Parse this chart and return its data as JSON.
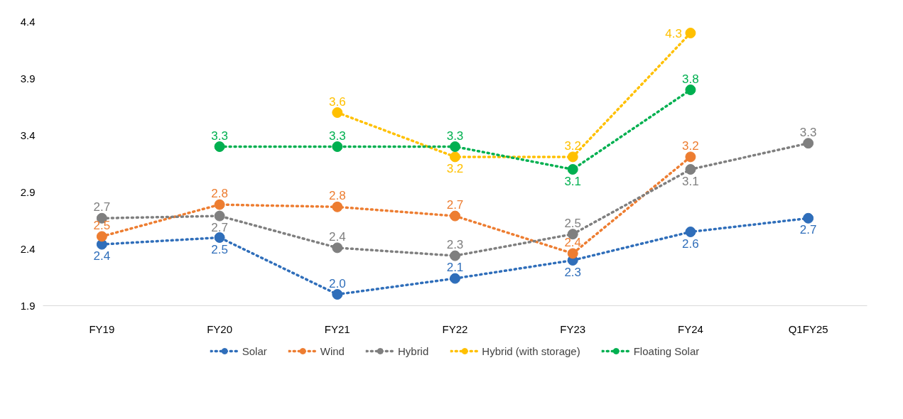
{
  "chart_data": {
    "type": "line",
    "categories": [
      "FY19",
      "FY20",
      "FY21",
      "FY22",
      "FY23",
      "FY24",
      "Q1FY25"
    ],
    "ylim": [
      1.9,
      4.4
    ],
    "yticks": [
      1.9,
      2.4,
      2.9,
      3.4,
      3.9,
      4.4
    ],
    "grid": false,
    "legend": "bottom",
    "marker": "circle",
    "line_style": "dotted",
    "series": [
      {
        "name": "Solar",
        "color": "#2f6eba",
        "values": [
          2.44,
          2.5,
          2.0,
          2.14,
          2.3,
          2.55,
          2.67
        ],
        "value_labels": [
          "2.4",
          "2.5",
          "2.0",
          "2.1",
          "2.3",
          "2.6",
          "2.7"
        ]
      },
      {
        "name": "Wind",
        "color": "#ed7d31",
        "values": [
          2.51,
          2.79,
          2.77,
          2.69,
          2.36,
          3.21,
          null
        ],
        "value_labels": [
          "2.5",
          "2.8",
          "2.8",
          "2.7",
          "2.4",
          "3.2",
          null
        ]
      },
      {
        "name": "Hybrid",
        "color": "#7f7f7f",
        "values": [
          2.67,
          2.69,
          2.41,
          2.34,
          2.53,
          3.1,
          3.33
        ],
        "value_labels": [
          "2.7",
          "2.7",
          "2.4",
          "2.3",
          "2.5",
          "3.1",
          "3.3"
        ]
      },
      {
        "name": "Hybrid (with storage)",
        "color": "#ffc000",
        "values": [
          null,
          null,
          3.6,
          3.21,
          3.21,
          4.3,
          null
        ],
        "value_labels": [
          null,
          null,
          "3.6",
          "3.2",
          "3.2",
          "4.3",
          null
        ]
      },
      {
        "name": "Floating Solar",
        "color": "#00b050",
        "values": [
          null,
          3.3,
          3.3,
          3.3,
          3.1,
          3.8,
          null
        ],
        "value_labels": [
          null,
          "3.3",
          "3.3",
          "3.3",
          "3.1",
          "3.8",
          null
        ]
      }
    ]
  }
}
